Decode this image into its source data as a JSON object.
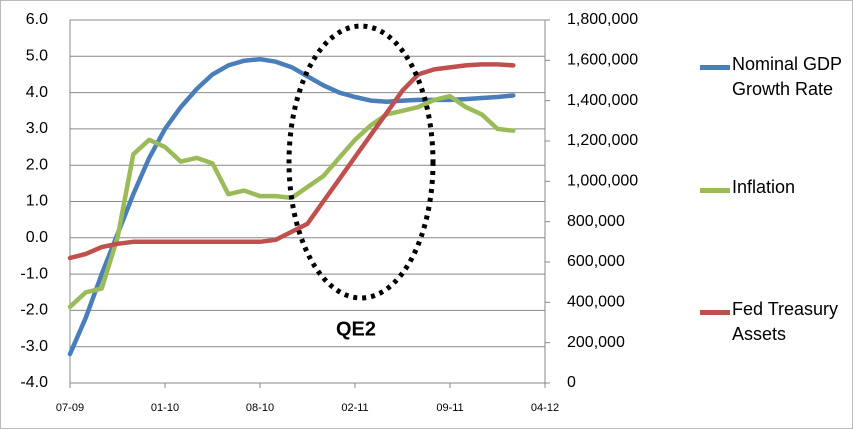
{
  "chart_data": {
    "type": "line",
    "categories": [
      "07-09",
      null,
      null,
      null,
      null,
      null,
      "01-10",
      null,
      null,
      null,
      null,
      null,
      "08-10",
      null,
      null,
      null,
      null,
      null,
      "02-11",
      null,
      null,
      null,
      null,
      null,
      "09-11",
      null,
      null,
      null,
      null,
      null,
      "04-12"
    ],
    "series": [
      {
        "name": "Nominal GDP Growth Rate",
        "color": "#4a7ebb",
        "axis": "y",
        "values": [
          -3.2,
          -2.2,
          -1.0,
          0.1,
          1.2,
          2.2,
          3.0,
          3.6,
          4.1,
          4.5,
          4.75,
          4.88,
          4.92,
          4.85,
          4.7,
          4.45,
          4.2,
          4.0,
          3.88,
          3.78,
          3.75,
          3.78,
          3.8,
          3.8,
          3.8,
          3.82,
          3.85,
          3.88,
          3.92,
          null,
          null
        ]
      },
      {
        "name": "Inflation",
        "color": "#9bbb59",
        "axis": "y",
        "values": [
          -1.9,
          -1.5,
          -1.4,
          0.0,
          2.3,
          2.7,
          2.5,
          2.1,
          2.2,
          2.05,
          1.2,
          1.3,
          1.15,
          1.15,
          1.1,
          1.4,
          1.7,
          2.2,
          2.7,
          3.1,
          3.4,
          3.5,
          3.6,
          3.8,
          3.9,
          3.6,
          3.4,
          3.0,
          2.95,
          null,
          null
        ]
      },
      {
        "name": "Fed Treasury Assets",
        "color": "#c0504d",
        "axis": "y2",
        "values": [
          620000,
          640000,
          674000,
          690000,
          700000,
          700000,
          700000,
          700000,
          700000,
          700000,
          700000,
          700000,
          700000,
          710000,
          750000,
          790000,
          900000,
          1010000,
          1120000,
          1230000,
          1340000,
          1450000,
          1530000,
          1555000,
          1565000,
          1575000,
          1580000,
          1580000,
          1575000,
          null,
          null
        ]
      }
    ],
    "ylim": [
      -4,
      6
    ],
    "yticks": [
      {
        "value": -4,
        "label": "-4.0"
      },
      {
        "value": -3,
        "label": "-3.0"
      },
      {
        "value": -2,
        "label": "-2.0"
      },
      {
        "value": -1,
        "label": "-1.0"
      },
      {
        "value": 0,
        "label": "0.0"
      },
      {
        "value": 1,
        "label": "1.0"
      },
      {
        "value": 2,
        "label": "2.0"
      },
      {
        "value": 3,
        "label": "3.0"
      },
      {
        "value": 4,
        "label": "4.0"
      },
      {
        "value": 5,
        "label": "5.0"
      },
      {
        "value": 6,
        "label": "6.0"
      }
    ],
    "y2lim": [
      0,
      1800000
    ],
    "y2ticks": [
      0,
      {
        "value": 200000,
        "label": "200,000"
      },
      {
        "value": 400000,
        "label": "400,000"
      },
      {
        "value": 600000,
        "label": "600,000"
      },
      {
        "value": 800000,
        "label": "800,000"
      },
      {
        "value": 1000000,
        "label": "1,000,000"
      },
      {
        "value": 1200000,
        "label": "1,200,000"
      },
      {
        "value": 1400000,
        "label": "1,400,000"
      },
      {
        "value": 1600000,
        "label": "1,600,000"
      },
      {
        "value": 1800000,
        "label": "1,800,000"
      }
    ],
    "grid": true,
    "legend": "right",
    "annotation": "QE2"
  }
}
